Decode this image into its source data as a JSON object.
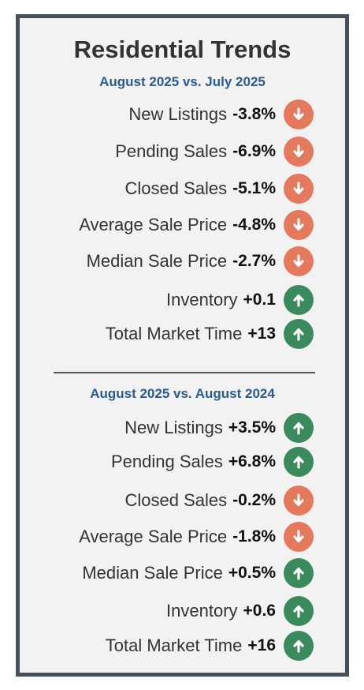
{
  "title": "Residential Trends",
  "colors": {
    "border": "#44505c",
    "header": "#2b5a94",
    "down": "#e4795d",
    "up": "#3a8a5e"
  },
  "sections": [
    {
      "header": "August 2025 vs. July 2025",
      "rows": [
        {
          "label": "New Listings",
          "value": "-3.8%",
          "direction": "down",
          "icon": "down-arrow-icon"
        },
        {
          "label": "Pending Sales",
          "value": "-6.9%",
          "direction": "down",
          "icon": "down-arrow-icon"
        },
        {
          "label": "Closed Sales",
          "value": "-5.1%",
          "direction": "down",
          "icon": "down-arrow-icon"
        },
        {
          "label": "Average Sale Price",
          "value": "-4.8%",
          "direction": "down",
          "icon": "down-arrow-icon"
        },
        {
          "label": "Median Sale Price",
          "value": "-2.7%",
          "direction": "down",
          "icon": "down-arrow-icon"
        },
        {
          "label": "Inventory",
          "value": "+0.1",
          "direction": "up",
          "icon": "up-arrow-icon"
        },
        {
          "label": "Total Market Time",
          "value": "+13",
          "direction": "up",
          "icon": "up-arrow-icon"
        }
      ]
    },
    {
      "header": "August 2025 vs. August 2024",
      "rows": [
        {
          "label": "New Listings",
          "value": "+3.5%",
          "direction": "up",
          "icon": "up-arrow-icon"
        },
        {
          "label": "Pending Sales",
          "value": "+6.8%",
          "direction": "up",
          "icon": "up-arrow-icon"
        },
        {
          "label": "Closed Sales",
          "value": "-0.2%",
          "direction": "down",
          "icon": "down-arrow-icon"
        },
        {
          "label": "Average Sale Price",
          "value": "-1.8%",
          "direction": "down",
          "icon": "down-arrow-icon"
        },
        {
          "label": "Median Sale Price",
          "value": "+0.5%",
          "direction": "up",
          "icon": "up-arrow-icon"
        },
        {
          "label": "Inventory",
          "value": "+0.6",
          "direction": "up",
          "icon": "up-arrow-icon"
        },
        {
          "label": "Total Market Time",
          "value": "+16",
          "direction": "up",
          "icon": "up-arrow-icon"
        }
      ]
    }
  ]
}
